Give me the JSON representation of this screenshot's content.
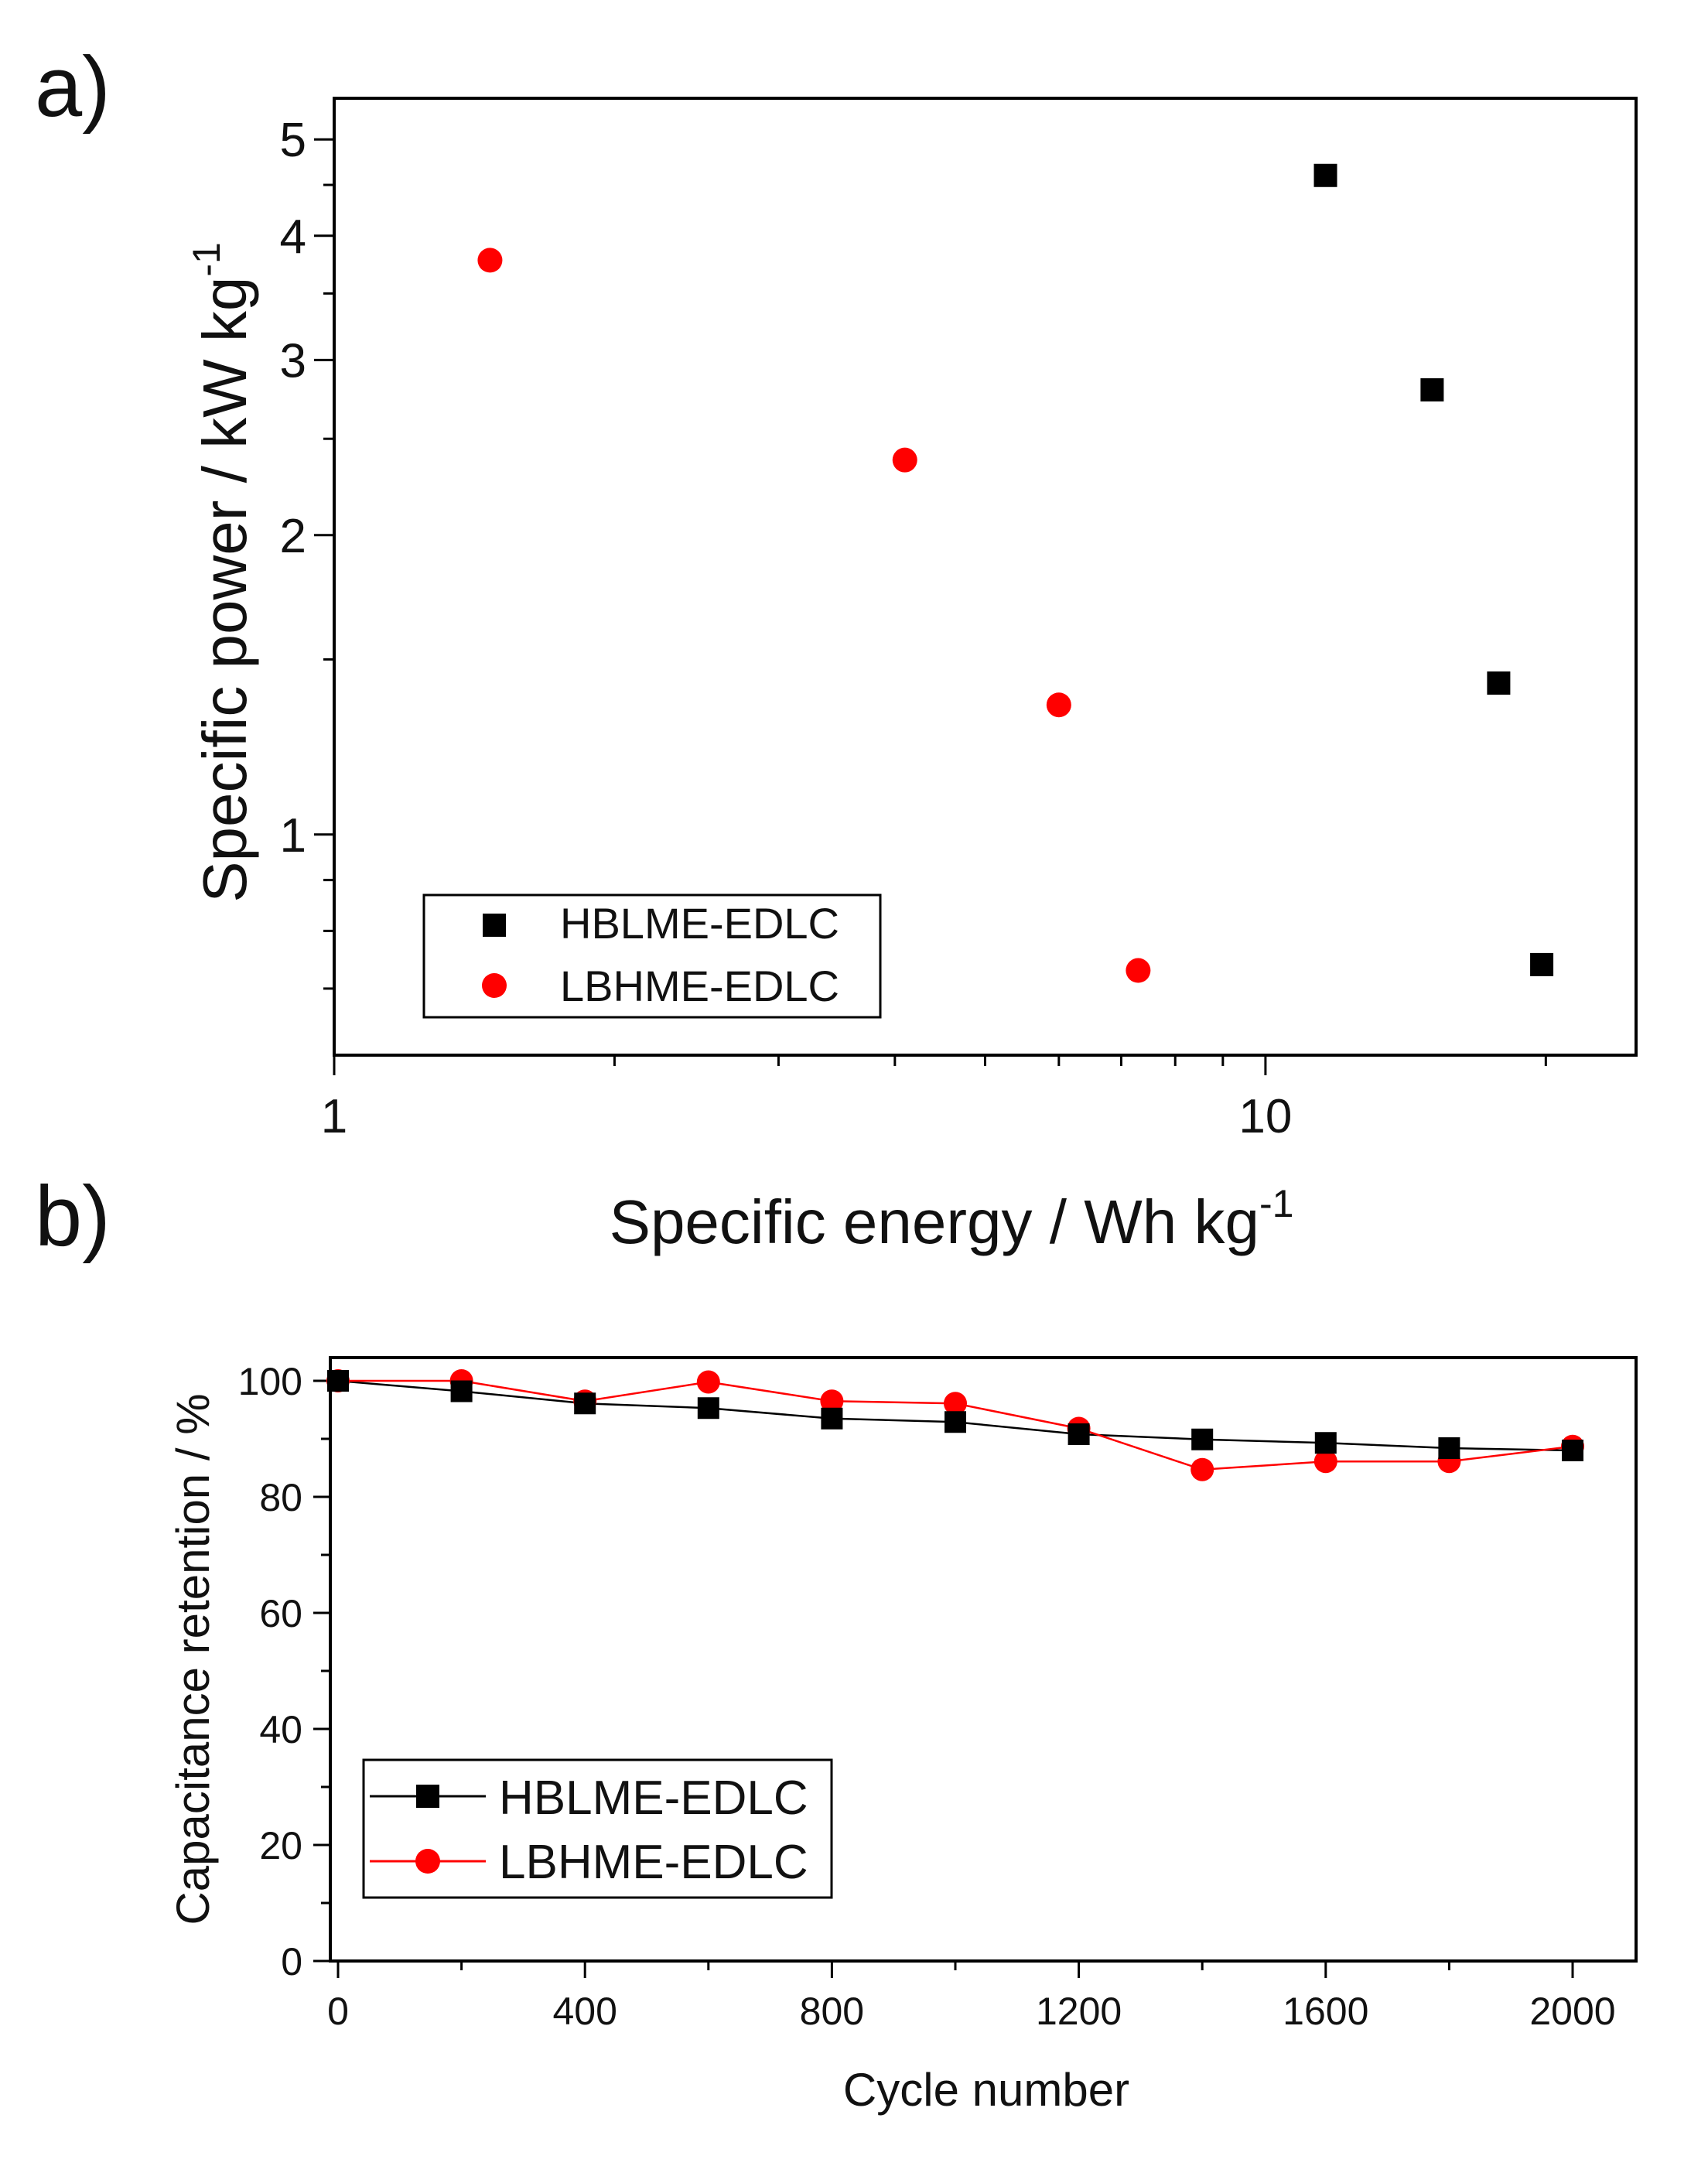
{
  "chart_data": [
    {
      "panel_label": "a)",
      "type": "scatter",
      "xscale": "log",
      "yscale": "log",
      "xlabel": "Specific energy / Wh kg",
      "xlabel_sup": "-1",
      "ylabel": "Specific power / kW kg",
      "ylabel_sup": "-1",
      "xlim": [
        1,
        25
      ],
      "ylim": [
        0.6,
        5.5
      ],
      "xticks": [
        {
          "value": 1,
          "label": "1"
        },
        {
          "value": 10,
          "label": "10"
        }
      ],
      "yticks": [
        {
          "value": 1,
          "label": "1"
        },
        {
          "value": 2,
          "label": "2"
        },
        {
          "value": 3,
          "label": "3"
        },
        {
          "value": 4,
          "label": "4"
        },
        {
          "value": 5,
          "label": "5"
        }
      ],
      "legend_position": "bottom-left",
      "series": [
        {
          "name": "HBLME-EDLC",
          "marker": "square",
          "color": "#000000",
          "points": [
            {
              "x": 11.6,
              "y": 4.6
            },
            {
              "x": 15.1,
              "y": 2.8
            },
            {
              "x": 17.8,
              "y": 1.42
            },
            {
              "x": 19.8,
              "y": 0.74
            }
          ]
        },
        {
          "name": "LBHME-EDLC",
          "marker": "circle",
          "color": "#ff0000",
          "points": [
            {
              "x": 1.47,
              "y": 3.78
            },
            {
              "x": 4.1,
              "y": 2.38
            },
            {
              "x": 6.0,
              "y": 1.35
            },
            {
              "x": 7.3,
              "y": 0.73
            }
          ]
        }
      ]
    },
    {
      "panel_label": "b)",
      "type": "line",
      "xlabel": "Cycle number",
      "ylabel": "Capacitance retention / %",
      "xlim": [
        0,
        2100
      ],
      "ylim": [
        0,
        104
      ],
      "xticks": [
        {
          "value": 0,
          "label": "0"
        },
        {
          "value": 400,
          "label": "400"
        },
        {
          "value": 800,
          "label": "800"
        },
        {
          "value": 1200,
          "label": "1200"
        },
        {
          "value": 1600,
          "label": "1600"
        },
        {
          "value": 2000,
          "label": "2000"
        }
      ],
      "yticks": [
        {
          "value": 0,
          "label": "0"
        },
        {
          "value": 20,
          "label": "20"
        },
        {
          "value": 40,
          "label": "40"
        },
        {
          "value": 60,
          "label": "60"
        },
        {
          "value": 80,
          "label": "80"
        },
        {
          "value": 100,
          "label": "100"
        }
      ],
      "legend_position": "bottom-left",
      "x": [
        0,
        200,
        400,
        600,
        800,
        1000,
        1200,
        1400,
        1600,
        1800,
        2000
      ],
      "series": [
        {
          "name": "HBLME-EDLC",
          "marker": "square",
          "color": "#000000",
          "values": [
            100,
            98.2,
            96.1,
            95.3,
            93.5,
            92.9,
            90.8,
            89.9,
            89.3,
            88.4,
            88.0
          ]
        },
        {
          "name": "LBHME-EDLC",
          "marker": "circle",
          "color": "#ff0000",
          "values": [
            100,
            100,
            96.5,
            99.8,
            96.5,
            96.1,
            91.8,
            84.7,
            86.1,
            86.1,
            88.7
          ]
        }
      ]
    }
  ]
}
